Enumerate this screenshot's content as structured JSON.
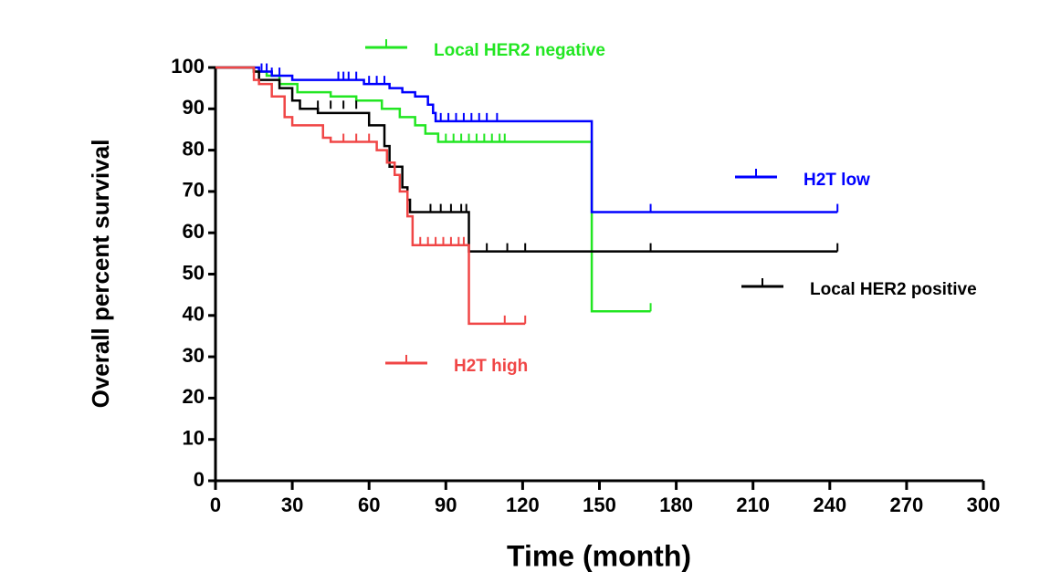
{
  "chart_data": {
    "type": "km",
    "xlabel": "Time (month)",
    "ylabel": "Overall percent survival",
    "xlim": [
      0,
      300
    ],
    "ylim": [
      0,
      100
    ],
    "xticks": [
      0,
      30,
      60,
      90,
      120,
      150,
      180,
      210,
      240,
      270,
      300
    ],
    "yticks": [
      0,
      10,
      20,
      30,
      40,
      50,
      60,
      70,
      80,
      90,
      100
    ],
    "series": [
      {
        "name": "Local HER2 negative",
        "color": "#22e622",
        "x": [
          0,
          15,
          20,
          25,
          32,
          45,
          55,
          65,
          72,
          78,
          82,
          87,
          147,
          170
        ],
        "values": [
          100,
          99,
          98,
          96,
          94,
          93,
          92,
          90,
          88,
          86,
          84,
          82,
          41,
          41
        ],
        "censored_x": [
          90,
          93,
          96,
          99,
          102,
          105,
          108,
          111,
          113,
          170
        ],
        "censored_y": [
          82,
          82,
          82,
          82,
          82,
          82,
          82,
          82,
          82,
          41
        ]
      },
      {
        "name": "H2T low",
        "color": "#0000ff",
        "x": [
          0,
          17,
          22,
          30,
          58,
          68,
          73,
          78,
          83,
          85,
          86,
          147,
          243
        ],
        "values": [
          100,
          99,
          98,
          97,
          96,
          95,
          94,
          93,
          91,
          89,
          87,
          65,
          65
        ],
        "censored_x": [
          18,
          20,
          22,
          25,
          48,
          50,
          52,
          55,
          60,
          63,
          66,
          88,
          91,
          94,
          97,
          100,
          103,
          106,
          110,
          170,
          243
        ],
        "censored_y": [
          99,
          99,
          98,
          98,
          97,
          97,
          97,
          97,
          96,
          96,
          96,
          87,
          87,
          87,
          87,
          87,
          87,
          87,
          87,
          65,
          65
        ]
      },
      {
        "name": "Local HER2 positive",
        "color": "#000000",
        "x": [
          0,
          15,
          17,
          25,
          30,
          33,
          40,
          60,
          66,
          68,
          73,
          75,
          76,
          80,
          99,
          243
        ],
        "values": [
          100,
          99,
          97,
          95,
          92,
          90,
          89,
          86,
          81,
          76,
          71,
          68,
          65,
          65,
          55.5,
          55.5
        ],
        "censored_x": [
          40,
          45,
          50,
          55,
          84,
          88,
          92,
          96,
          98,
          106,
          114,
          121,
          170,
          243
        ],
        "censored_y": [
          90,
          90,
          90,
          90,
          65,
          65,
          65,
          65,
          65,
          55.5,
          55.5,
          55.5,
          55.5,
          55.5
        ]
      },
      {
        "name": "H2T high",
        "color": "#f04646",
        "x": [
          0,
          15,
          17,
          22,
          27,
          30,
          40,
          42,
          45,
          63,
          67,
          70,
          72,
          75,
          77,
          99,
          121
        ],
        "values": [
          100,
          97,
          96,
          93,
          88,
          86,
          86,
          83,
          82,
          80,
          77,
          74,
          70,
          64,
          57,
          38,
          38
        ],
        "censored_x": [
          50,
          55,
          60,
          80,
          83,
          86,
          89,
          92,
          95,
          97,
          113,
          121
        ],
        "censored_y": [
          82,
          82,
          82,
          57,
          57,
          57,
          57,
          57,
          57,
          57,
          38,
          38
        ]
      }
    ]
  }
}
